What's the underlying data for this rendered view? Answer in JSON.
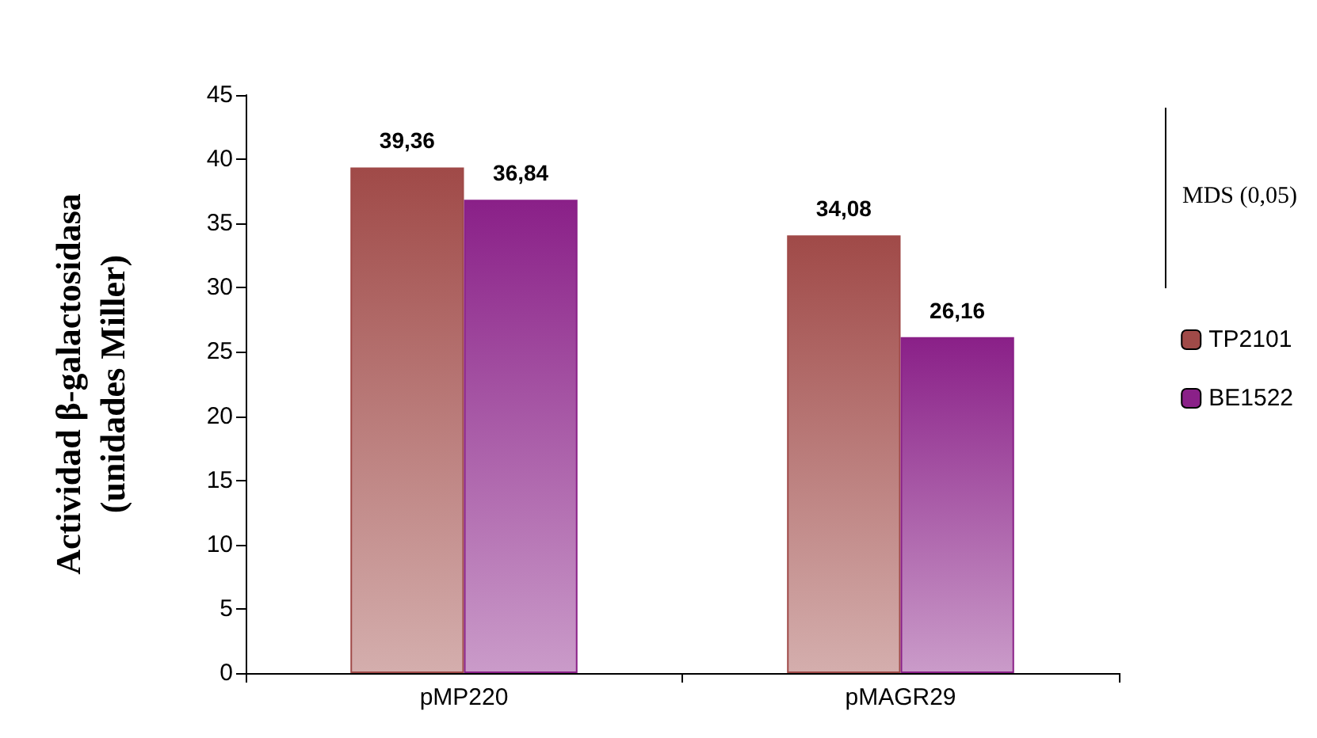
{
  "chart_data": {
    "type": "bar",
    "ylabel": "Actividad β-galactosidasa\n(unidades Miller)",
    "categories": [
      "pMP220",
      "pMAGR29"
    ],
    "series": [
      {
        "name": "TP2101",
        "color": "#a04a48",
        "values": [
          39.36,
          34.08
        ],
        "value_labels": [
          "39,36",
          "34,08"
        ]
      },
      {
        "name": "BE1522",
        "color": "#8a2088",
        "values": [
          36.84,
          26.16
        ],
        "value_labels": [
          "36,84",
          "26,16"
        ]
      }
    ],
    "ylim": [
      0,
      45
    ],
    "yticks": [
      0,
      5,
      10,
      15,
      20,
      25,
      30,
      35,
      40,
      45
    ],
    "grid": false,
    "legend": "right",
    "annotations": [
      "MDS (0,05)"
    ]
  }
}
